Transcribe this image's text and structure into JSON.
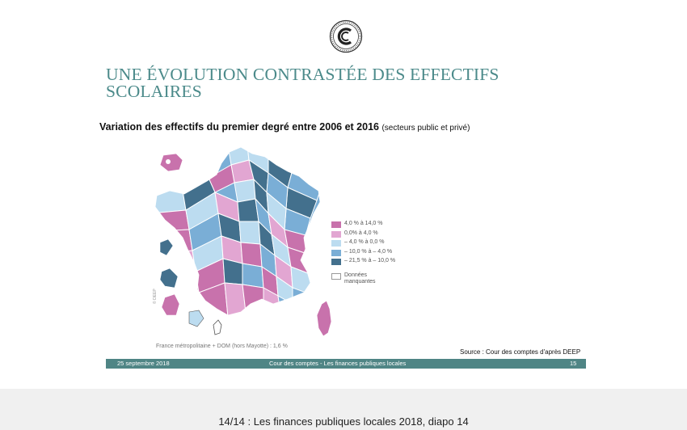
{
  "slide": {
    "title_line1": "UNE ÉVOLUTION CONTRASTÉE DES EFFECTIFS",
    "title_line2": "SCOLAIRES",
    "subtitle_main": "Variation des effectifs du premier degré entre 2006 et 2016",
    "subtitle_paren": "(secteurs public et privé)",
    "legend": [
      {
        "label": "4,0 % à 14,0 %",
        "color": "#c872ac"
      },
      {
        "label": "0,0% à 4,0 %",
        "color": "#e2a6d2"
      },
      {
        "label": "– 4,0 % à 0,0 %",
        "color": "#bcdcf0"
      },
      {
        "label": "– 10,0 % à – 4,0 %",
        "color": "#7aaed6"
      },
      {
        "label": "– 21,5 % à – 10,0 %",
        "color": "#43708d"
      }
    ],
    "legend_missing": "Données manquantes",
    "note": "France métropolitaine + DOM (hors Mayotte) : 1,6 %",
    "source": "Source : Cour des comptes d'après DEEP",
    "map_credit": "© DEEP"
  },
  "footer": {
    "date": "25 septembre 2018",
    "center": "Cour des comptes  - Les finances publiques locales",
    "page": "15"
  },
  "caption": "14/14 : Les finances publiques locales 2018, diapo 14",
  "colors": {
    "title": "#4b8a8a",
    "footer_bar": "#4f8585"
  },
  "icons": {
    "logo": "cour-des-comptes-logo"
  }
}
